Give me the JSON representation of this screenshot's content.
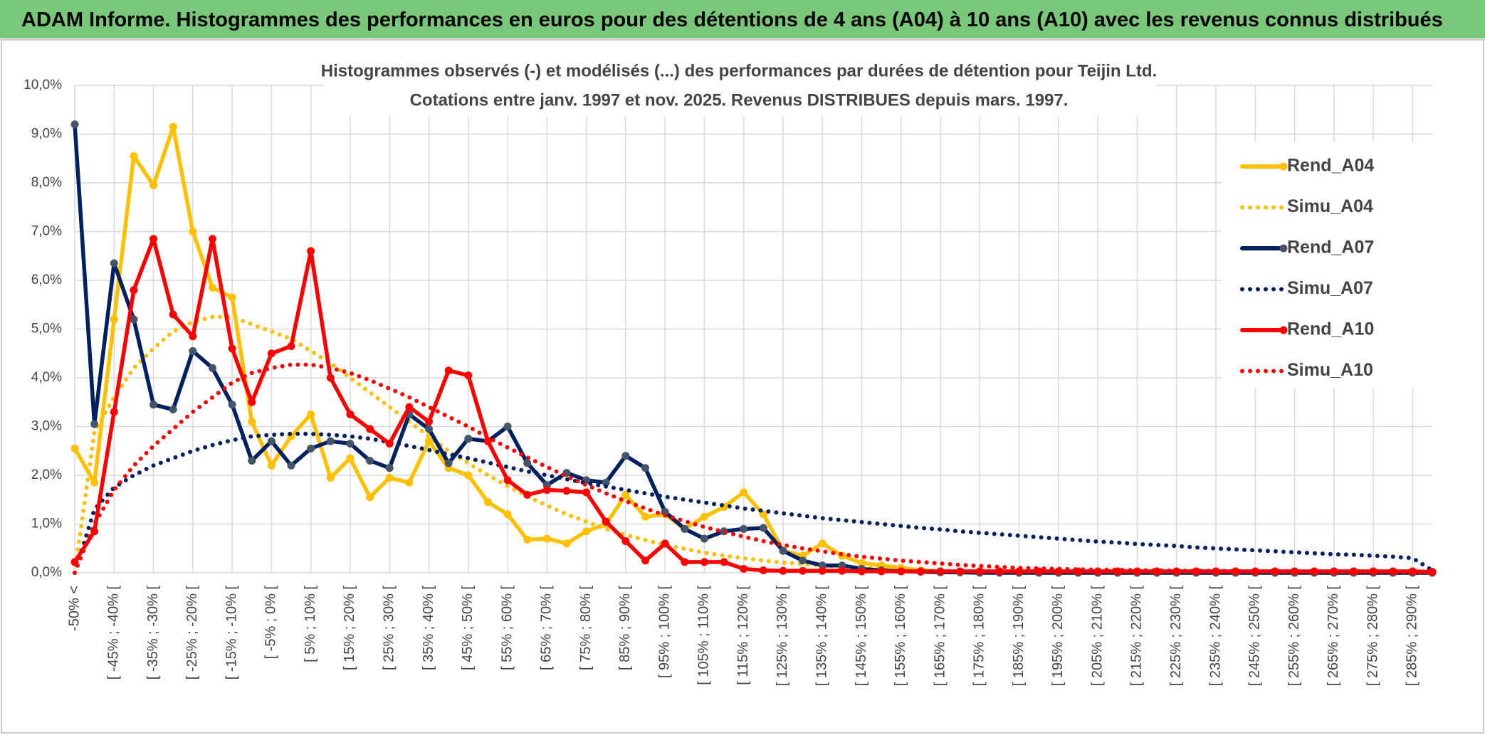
{
  "page_title": "ADAM Informe. Histogrammes des performances en euros pour des détentions de 4 ans (A04) à 10 ans (A10) avec les revenus connus distribués",
  "chart_data": {
    "type": "line",
    "title": "Histogrammes observés (-) et modélisés (...) des performances par durées de détention pour Teijin Ltd.",
    "subtitle": "Cotations entre janv. 1997 et nov. 2025. Revenus DISTRIBUES depuis mars. 1997.",
    "categories": [
      "-50% <",
      null,
      "[ -45% ; -40% [",
      null,
      "[ -35% ; -30% [",
      null,
      "[ -25% ; -20% [",
      null,
      "[ -15% ; -10% [",
      null,
      "[ -5% ; 0% [",
      null,
      "[ 5% ; 10% [",
      null,
      "[ 15% ; 20% [",
      null,
      "[ 25% ; 30% [",
      null,
      "[ 35% ; 40% [",
      null,
      "[ 45% ; 50% [",
      null,
      "[ 55% ; 60% [",
      null,
      "[ 65% ; 70% [",
      null,
      "[ 75% ; 80% [",
      null,
      "[ 85% ; 90% [",
      null,
      "[ 95% ; 100% [",
      null,
      "[ 105% ; 110% [",
      null,
      "[ 115% ; 120% [",
      null,
      "[ 125% ; 130% [",
      null,
      "[ 135% ; 140% [",
      null,
      "[ 145% ; 150% [",
      null,
      "[ 155% ; 160% [",
      null,
      "[ 165% ; 170% [",
      null,
      "[ 175% ; 180% [",
      null,
      "[ 185% ; 190% [",
      null,
      "[ 195% ; 200% [",
      null,
      "[ 205% ; 210% [",
      null,
      "[ 215% ; 220% [",
      null,
      "[ 225% ; 230% [",
      null,
      "[ 235% ; 240% [",
      null,
      "[ 245% ; 250% [",
      null,
      "[ 255% ; 260% [",
      null,
      "[ 265% ; 270% [",
      null,
      "[ 275% ; 280% [",
      null,
      "[ 285% ; 290% [",
      null
    ],
    "series": [
      {
        "name": "Rend_A04",
        "color": "#ffc000",
        "line_style": "solid",
        "values": [
          2.55,
          1.85,
          5.2,
          8.55,
          7.95,
          9.15,
          7.0,
          5.85,
          5.65,
          3.1,
          2.2,
          2.8,
          3.25,
          1.95,
          2.35,
          1.55,
          1.95,
          1.85,
          2.7,
          2.15,
          2.0,
          1.45,
          1.2,
          0.68,
          0.7,
          0.6,
          0.85,
          1.0,
          1.6,
          1.15,
          1.2,
          0.9,
          1.15,
          1.35,
          1.65,
          1.2,
          0.45,
          0.35,
          0.6,
          0.35,
          0.2,
          0.15,
          0.1,
          0.05,
          0.02,
          0.02,
          0.01,
          0.01,
          0,
          0,
          0,
          0,
          0,
          0,
          0,
          0,
          0,
          0,
          0,
          0,
          0,
          0,
          0,
          0,
          0,
          0,
          0,
          0,
          0,
          0
        ]
      },
      {
        "name": "Simu_A04",
        "color": "#ffc000",
        "line_style": "dotted",
        "values": [
          0.0,
          2.9,
          3.6,
          4.2,
          4.6,
          4.95,
          5.15,
          5.25,
          5.25,
          5.1,
          4.95,
          4.8,
          4.55,
          4.3,
          4.0,
          3.7,
          3.4,
          3.1,
          2.8,
          2.5,
          2.25,
          2.0,
          1.78,
          1.57,
          1.38,
          1.2,
          1.05,
          0.9,
          0.78,
          0.67,
          0.57,
          0.49,
          0.41,
          0.35,
          0.3,
          0.25,
          0.21,
          0.18,
          0.15,
          0.12,
          0.1,
          0.08,
          0.06,
          0.05,
          0.04,
          0.03,
          0.03,
          0.02,
          0.02,
          0.02,
          0.01,
          0.01,
          0.01,
          0.01,
          0.01,
          0.01,
          0.01,
          0.01,
          0.01,
          0.01,
          0.01,
          0.01,
          0.01,
          0.01,
          0,
          0,
          0,
          0,
          0,
          0
        ]
      },
      {
        "name": "Rend_A07",
        "color": "#002060",
        "line_style": "solid",
        "values": [
          9.2,
          3.05,
          6.35,
          5.2,
          3.45,
          3.35,
          4.55,
          4.2,
          3.45,
          2.3,
          2.7,
          2.2,
          2.55,
          2.7,
          2.65,
          2.3,
          2.15,
          3.25,
          2.95,
          2.25,
          2.75,
          2.7,
          3.0,
          2.25,
          1.8,
          2.05,
          1.9,
          1.85,
          2.4,
          2.15,
          1.25,
          0.9,
          0.7,
          0.85,
          0.9,
          0.92,
          0.45,
          0.25,
          0.15,
          0.15,
          0.08,
          0.05,
          0.03,
          0.02,
          0.01,
          0.01,
          0,
          0,
          0,
          0,
          0,
          0,
          0,
          0,
          0,
          0,
          0,
          0,
          0,
          0,
          0,
          0,
          0,
          0,
          0,
          0,
          0,
          0,
          0,
          0
        ]
      },
      {
        "name": "Simu_A07",
        "color": "#002060",
        "line_style": "dotted",
        "values": [
          0.0,
          1.3,
          1.75,
          2.0,
          2.2,
          2.35,
          2.5,
          2.62,
          2.72,
          2.8,
          2.83,
          2.85,
          2.85,
          2.83,
          2.8,
          2.75,
          2.68,
          2.6,
          2.52,
          2.43,
          2.35,
          2.26,
          2.17,
          2.08,
          2.0,
          1.92,
          1.84,
          1.77,
          1.7,
          1.63,
          1.56,
          1.5,
          1.44,
          1.38,
          1.32,
          1.27,
          1.22,
          1.17,
          1.12,
          1.08,
          1.04,
          1.0,
          0.96,
          0.92,
          0.89,
          0.85,
          0.82,
          0.79,
          0.76,
          0.73,
          0.7,
          0.67,
          0.64,
          0.62,
          0.59,
          0.57,
          0.55,
          0.52,
          0.5,
          0.48,
          0.46,
          0.44,
          0.42,
          0.4,
          0.38,
          0.37,
          0.35,
          0.33,
          0.3,
          0.05
        ]
      },
      {
        "name": "Rend_A10",
        "color": "#ff0000",
        "line_style": "solid",
        "values": [
          0.22,
          0.85,
          3.3,
          5.8,
          6.85,
          5.3,
          4.85,
          6.85,
          4.6,
          3.5,
          4.5,
          4.65,
          6.6,
          4.0,
          3.25,
          2.95,
          2.65,
          3.4,
          3.1,
          4.15,
          4.05,
          2.7,
          1.9,
          1.6,
          1.7,
          1.68,
          1.65,
          1.05,
          0.65,
          0.25,
          0.6,
          0.22,
          0.22,
          0.22,
          0.08,
          0.05,
          0.04,
          0.04,
          0.04,
          0.04,
          0.03,
          0.03,
          0.03,
          0.03,
          0.03,
          0.03,
          0.03,
          0.03,
          0.03,
          0.03,
          0.03,
          0.03,
          0.03,
          0.03,
          0.03,
          0.03,
          0.03,
          0.03,
          0.03,
          0.03,
          0.03,
          0.03,
          0.03,
          0.03,
          0.03,
          0.03,
          0.03,
          0.03,
          0.03,
          0.02
        ]
      },
      {
        "name": "Simu_A10",
        "color": "#ff0000",
        "line_style": "dotted",
        "values": [
          0.0,
          1.0,
          1.7,
          2.2,
          2.6,
          2.95,
          3.3,
          3.6,
          3.9,
          4.1,
          4.2,
          4.27,
          4.27,
          4.2,
          4.1,
          3.95,
          3.78,
          3.6,
          3.4,
          3.2,
          3.0,
          2.78,
          2.57,
          2.37,
          2.17,
          1.98,
          1.8,
          1.63,
          1.47,
          1.32,
          1.18,
          1.06,
          0.94,
          0.84,
          0.74,
          0.65,
          0.57,
          0.5,
          0.44,
          0.38,
          0.33,
          0.29,
          0.25,
          0.22,
          0.19,
          0.16,
          0.14,
          0.12,
          0.1,
          0.09,
          0.08,
          0.07,
          0.06,
          0.06,
          0.05,
          0.05,
          0.04,
          0.04,
          0.04,
          0.03,
          0.03,
          0.03,
          0.03,
          0.02,
          0.02,
          0.02,
          0.02,
          0.02,
          0.01,
          0.0
        ]
      }
    ],
    "ylim": [
      0,
      10
    ],
    "yticks": [
      {
        "value": 0,
        "label": "0,0%"
      },
      {
        "value": 1,
        "label": "1,0%"
      },
      {
        "value": 2,
        "label": "2,0%"
      },
      {
        "value": 3,
        "label": "3,0%"
      },
      {
        "value": 4,
        "label": "4,0%"
      },
      {
        "value": 5,
        "label": "5,0%"
      },
      {
        "value": 6,
        "label": "6,0%"
      },
      {
        "value": 7,
        "label": "7,0%"
      },
      {
        "value": 8,
        "label": "8,0%"
      },
      {
        "value": 9,
        "label": "9,0%"
      },
      {
        "value": 10,
        "label": "10,0%"
      }
    ],
    "grid": true,
    "legend": "right"
  }
}
